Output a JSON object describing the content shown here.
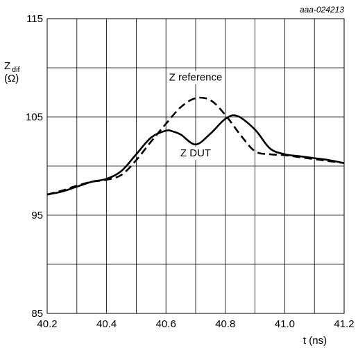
{
  "figure_code": "aaa-024213",
  "chart_data": {
    "type": "line",
    "title": "",
    "xlabel": "t (ns)",
    "ylabel_main": "Z",
    "ylabel_sub": "dif",
    "ylabel_unit": "(Ω)",
    "xlim": [
      40.2,
      41.2
    ],
    "ylim": [
      85,
      115
    ],
    "x_ticks": [
      40.2,
      40.4,
      40.6,
      40.8,
      41.0,
      41.2
    ],
    "x_tick_labels": [
      "40.2",
      "40.4",
      "40.6",
      "40.8",
      "41.0",
      "41.2"
    ],
    "y_ticks": [
      85,
      95,
      105,
      115
    ],
    "y_tick_labels": [
      "85",
      "95",
      "105",
      "115"
    ],
    "grid": true,
    "series": [
      {
        "name": "Z reference",
        "style": "dashed",
        "x": [
          40.2,
          40.25,
          40.3,
          40.35,
          40.4,
          40.45,
          40.5,
          40.55,
          40.6,
          40.65,
          40.7,
          40.75,
          40.8,
          40.85,
          40.9,
          40.95,
          41.0,
          41.05,
          41.1,
          41.15,
          41.2
        ],
        "y": [
          97.1,
          97.5,
          98.0,
          98.4,
          98.6,
          99.1,
          100.6,
          102.5,
          104.3,
          106.0,
          106.9,
          106.7,
          105.2,
          103.2,
          101.5,
          101.2,
          101.1,
          100.9,
          100.7,
          100.5,
          100.3
        ]
      },
      {
        "name": "Z DUT",
        "style": "solid",
        "x": [
          40.2,
          40.25,
          40.3,
          40.35,
          40.4,
          40.45,
          40.5,
          40.55,
          40.6,
          40.625,
          40.65,
          40.7,
          40.75,
          40.8,
          40.84,
          40.9,
          40.95,
          41.0,
          41.05,
          41.1,
          41.15,
          41.2
        ],
        "y": [
          97.1,
          97.4,
          97.9,
          98.4,
          98.7,
          99.5,
          101.2,
          102.9,
          103.6,
          103.5,
          103.2,
          102.2,
          103.3,
          104.8,
          105.1,
          103.7,
          101.8,
          101.2,
          101.0,
          100.8,
          100.6,
          100.3
        ]
      }
    ],
    "annotations": [
      {
        "text": "Z reference",
        "x": 40.7,
        "y": 108.7
      },
      {
        "text": "Z DUT",
        "x": 40.7,
        "y": 101.0
      }
    ]
  }
}
